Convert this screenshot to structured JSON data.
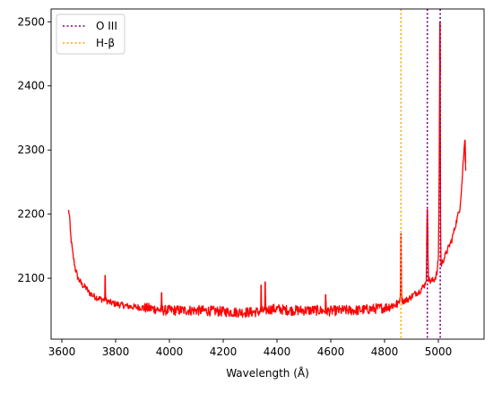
{
  "chart_data": {
    "type": "line",
    "xlabel": "Wavelength (Å)",
    "ylabel": "",
    "xlim": [
      3560,
      5170
    ],
    "ylim": [
      2005,
      2520
    ],
    "xticks": [
      3600,
      3800,
      4000,
      4200,
      4400,
      4600,
      4800,
      5000
    ],
    "yticks": [
      2100,
      2200,
      2300,
      2400,
      2500
    ],
    "grid": false,
    "legend_position": "top-left",
    "legend": [
      {
        "label": "O III",
        "color": "#800080",
        "style": "dotted"
      },
      {
        "label": "H-β",
        "color": "#FFA500",
        "style": "dotted"
      }
    ],
    "vlines": [
      {
        "series": "O III",
        "x": 4959,
        "color": "#800080"
      },
      {
        "series": "O III",
        "x": 5007,
        "color": "#800080"
      },
      {
        "series": "H-β",
        "x": 4861,
        "color": "#FFA500"
      }
    ],
    "series": [
      {
        "color": "#FF0000",
        "x": [
          3625,
          3628,
          3632,
          3640,
          3650,
          3660,
          3675,
          3690,
          3700,
          3720,
          3740,
          3760,
          3761,
          3762,
          3780,
          3800,
          3850,
          3900,
          3950,
          3970,
          3971,
          3972,
          4000,
          4050,
          4100,
          4150,
          4200,
          4250,
          4300,
          4340,
          4341,
          4342,
          4355,
          4356,
          4357,
          4380,
          4400,
          4450,
          4500,
          4550,
          4580,
          4581,
          4582,
          4600,
          4650,
          4700,
          4750,
          4800,
          4830,
          4850,
          4855,
          4858,
          4860,
          4861,
          4862,
          4864,
          4866,
          4870,
          4890,
          4910,
          4930,
          4950,
          4955,
          4957,
          4959,
          4961,
          4963,
          4970,
          4985,
          4995,
          5000,
          5003,
          5005,
          5006,
          5007,
          5008,
          5010,
          5020,
          5035,
          5050,
          5065,
          5080,
          5088,
          5092,
          5096,
          5099,
          5101,
          5103
        ],
        "y": [
          2205,
          2200,
          2170,
          2140,
          2115,
          2100,
          2090,
          2085,
          2078,
          2072,
          2068,
          2066,
          2105,
          2066,
          2062,
          2060,
          2056,
          2054,
          2052,
          2050,
          2078,
          2050,
          2050,
          2050,
          2050,
          2049,
          2048,
          2047,
          2047,
          2048,
          2090,
          2048,
          2050,
          2095,
          2050,
          2052,
          2052,
          2050,
          2050,
          2050,
          2049,
          2075,
          2049,
          2049,
          2050,
          2050,
          2052,
          2054,
          2058,
          2060,
          2065,
          2070,
          2100,
          2170,
          2100,
          2068,
          2065,
          2064,
          2068,
          2075,
          2080,
          2090,
          2100,
          2150,
          2208,
          2150,
          2100,
          2095,
          2098,
          2108,
          2130,
          2250,
          2440,
          2500,
          2420,
          2200,
          2120,
          2130,
          2145,
          2160,
          2185,
          2210,
          2250,
          2280,
          2300,
          2316,
          2280,
          2250
        ]
      }
    ]
  }
}
